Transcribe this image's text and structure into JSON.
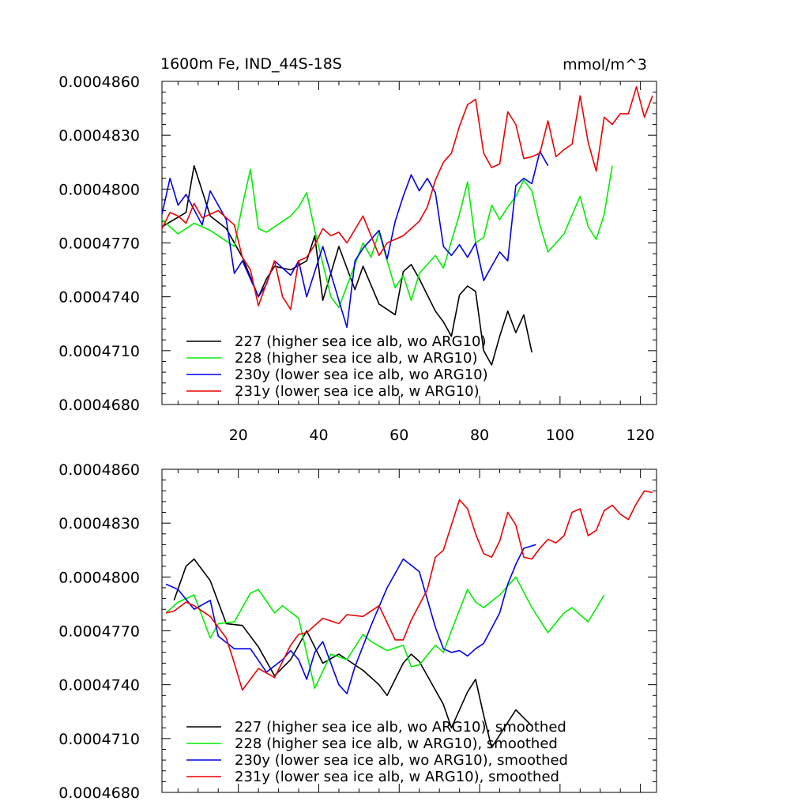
{
  "colors": {
    "227": "#000000",
    "228": "#00ee00",
    "230y": "#0000ee",
    "231y": "#ee0000"
  },
  "chart_data": [
    {
      "type": "line",
      "title_left": "1600m Fe, IND_44S-18S",
      "title_right": "mmol/m^3",
      "xlim": [
        1,
        124
      ],
      "ylim": [
        0.000468,
        0.000486
      ],
      "xticks": [
        20,
        40,
        60,
        80,
        100,
        120
      ],
      "xtick_labels": [
        "20",
        "40",
        "60",
        "80",
        "100",
        "120"
      ],
      "yticks": [
        0.000468,
        0.000471,
        0.000474,
        0.000477,
        0.00048,
        0.000483,
        0.000486
      ],
      "ytick_labels": [
        "0.0004680",
        "0.0004710",
        "0.0004740",
        "0.0004770",
        "0.0004800",
        "0.0004830",
        "0.0004860"
      ],
      "legend": [
        "227 (higher sea ice alb, wo ARG10)",
        "228 (higher sea ice alb, w ARG10)",
        "230y (lower sea ice alb, wo ARG10)",
        "231y (lower sea ice alb, w ARG10)"
      ],
      "series": [
        {
          "name": "227",
          "x": [
            1,
            7,
            9,
            13,
            17,
            21,
            25,
            27,
            29,
            33,
            37,
            39,
            41,
            45,
            49,
            51,
            55,
            59,
            61,
            63,
            65,
            69,
            71,
            73,
            75,
            77,
            79,
            81,
            83,
            85,
            87,
            89,
            91,
            93
          ],
          "y": [
            0.0004779,
            0.0004787,
            0.0004813,
            0.0004785,
            0.0004778,
            0.0004762,
            0.000474,
            0.000475,
            0.0004757,
            0.0004755,
            0.000476,
            0.0004774,
            0.0004738,
            0.0004768,
            0.0004744,
            0.0004757,
            0.0004736,
            0.000473,
            0.0004754,
            0.0004758,
            0.000475,
            0.0004732,
            0.0004726,
            0.0004718,
            0.0004741,
            0.0004746,
            0.0004743,
            0.000471,
            0.0004702,
            0.0004718,
            0.0004732,
            0.000472,
            0.000473,
            0.0004709
          ]
        },
        {
          "name": "228",
          "x": [
            1,
            5,
            9,
            13,
            17,
            19,
            21,
            23,
            25,
            27,
            31,
            33,
            35,
            37,
            39,
            43,
            45,
            49,
            51,
            53,
            55,
            57,
            59,
            61,
            63,
            65,
            69,
            71,
            75,
            77,
            79,
            81,
            83,
            85,
            87,
            89,
            91,
            93,
            95,
            97,
            101,
            105,
            107,
            109,
            111,
            113
          ],
          "y": [
            0.0004783,
            0.0004775,
            0.0004781,
            0.0004777,
            0.0004771,
            0.0004768,
            0.0004791,
            0.0004811,
            0.0004778,
            0.0004776,
            0.0004782,
            0.0004785,
            0.000479,
            0.0004798,
            0.0004777,
            0.000474,
            0.0004734,
            0.0004758,
            0.000477,
            0.0004762,
            0.0004776,
            0.000476,
            0.0004745,
            0.0004752,
            0.0004738,
            0.0004753,
            0.0004763,
            0.0004756,
            0.0004786,
            0.0004804,
            0.000477,
            0.0004773,
            0.0004791,
            0.0004783,
            0.000479,
            0.0004796,
            0.0004805,
            0.0004799,
            0.000478,
            0.0004765,
            0.0004775,
            0.0004796,
            0.0004779,
            0.0004772,
            0.0004786,
            0.0004813
          ]
        },
        {
          "name": "230y",
          "x": [
            1,
            3,
            5,
            7,
            11,
            13,
            17,
            19,
            21,
            25,
            27,
            29,
            33,
            35,
            37,
            41,
            45,
            47,
            49,
            51,
            55,
            57,
            59,
            61,
            63,
            65,
            67,
            69,
            71,
            73,
            75,
            77,
            79,
            81,
            83,
            85,
            87,
            89,
            91,
            93,
            95,
            97
          ],
          "y": [
            0.0004786,
            0.0004806,
            0.0004791,
            0.0004797,
            0.000478,
            0.0004799,
            0.0004783,
            0.0004753,
            0.000476,
            0.000474,
            0.0004747,
            0.000476,
            0.0004752,
            0.000476,
            0.000474,
            0.0004768,
            0.0004738,
            0.0004723,
            0.000476,
            0.0004767,
            0.0004777,
            0.0004761,
            0.0004782,
            0.0004796,
            0.0004808,
            0.0004799,
            0.0004806,
            0.0004798,
            0.0004768,
            0.0004763,
            0.0004769,
            0.0004762,
            0.000477,
            0.0004749,
            0.0004757,
            0.0004765,
            0.000476,
            0.0004802,
            0.0004806,
            0.0004803,
            0.0004821,
            0.0004813
          ]
        },
        {
          "name": "231y",
          "x": [
            1,
            3,
            5,
            7,
            9,
            11,
            15,
            19,
            21,
            23,
            25,
            29,
            31,
            33,
            35,
            37,
            39,
            41,
            43,
            45,
            47,
            51,
            55,
            57,
            61,
            65,
            67,
            69,
            71,
            73,
            75,
            77,
            79,
            81,
            83,
            85,
            87,
            89,
            91,
            93,
            95,
            97,
            99,
            101,
            103,
            105,
            107,
            109,
            111,
            113,
            115,
            117,
            119,
            121,
            123
          ],
          "y": [
            0.0004778,
            0.0004787,
            0.0004785,
            0.0004781,
            0.0004792,
            0.0004784,
            0.0004788,
            0.000478,
            0.0004762,
            0.0004755,
            0.0004735,
            0.000476,
            0.000474,
            0.0004733,
            0.000476,
            0.0004762,
            0.0004769,
            0.0004778,
            0.0004774,
            0.0004776,
            0.000477,
            0.0004785,
            0.0004763,
            0.000477,
            0.0004774,
            0.0004782,
            0.000479,
            0.0004805,
            0.0004815,
            0.000482,
            0.0004835,
            0.0004847,
            0.000485,
            0.000482,
            0.0004812,
            0.0004814,
            0.0004843,
            0.0004836,
            0.0004817,
            0.0004818,
            0.000482,
            0.0004838,
            0.0004818,
            0.0004822,
            0.0004825,
            0.0004852,
            0.0004826,
            0.000481,
            0.000484,
            0.0004836,
            0.0004842,
            0.0004842,
            0.0004857,
            0.000484,
            0.0004852
          ]
        }
      ]
    },
    {
      "type": "line",
      "xlim": [
        1,
        124
      ],
      "ylim": [
        0.000468,
        0.000486
      ],
      "xticks": [
        20,
        40,
        60,
        80,
        100,
        120
      ],
      "yticks": [
        0.000468,
        0.000471,
        0.000474,
        0.000477,
        0.00048,
        0.000483,
        0.000486
      ],
      "ytick_labels": [
        "0.0004680",
        "0.0004710",
        "0.0004740",
        "0.0004770",
        "0.0004800",
        "0.0004830",
        "0.0004860"
      ],
      "legend": [
        "227 (higher sea ice alb, wo ARG10), smoothed",
        "228 (higher sea ice alb, w ARG10), smoothed",
        "230y (lower sea ice alb, wo ARG10), smoothed",
        "231y (lower sea ice alb, w ARG10), smoothed"
      ],
      "series": [
        {
          "name": "227",
          "x": [
            4,
            7,
            9,
            13,
            17,
            21,
            25,
            29,
            33,
            37,
            41,
            45,
            51,
            55,
            57,
            61,
            63,
            65,
            71,
            73,
            77,
            79,
            81,
            83,
            85,
            87,
            89,
            93
          ],
          "y": [
            0.0004787,
            0.0004806,
            0.000481,
            0.0004798,
            0.0004774,
            0.0004773,
            0.0004761,
            0.0004745,
            0.0004754,
            0.000477,
            0.0004752,
            0.0004757,
            0.0004748,
            0.000474,
            0.0004734,
            0.0004752,
            0.0004757,
            0.0004753,
            0.0004729,
            0.0004716,
            0.0004736,
            0.0004743,
            0.0004723,
            0.0004705,
            0.0004712,
            0.0004719,
            0.0004726,
            0.0004717
          ]
        },
        {
          "name": "228",
          "x": [
            2,
            5,
            9,
            13,
            15,
            19,
            23,
            25,
            29,
            31,
            35,
            39,
            43,
            47,
            51,
            53,
            57,
            61,
            63,
            65,
            69,
            71,
            73,
            77,
            79,
            81,
            85,
            89,
            93,
            97,
            101,
            103,
            107,
            111
          ],
          "y": [
            0.000478,
            0.0004786,
            0.000479,
            0.0004766,
            0.0004774,
            0.0004775,
            0.0004791,
            0.0004793,
            0.000478,
            0.0004784,
            0.0004777,
            0.0004738,
            0.0004757,
            0.0004754,
            0.0004768,
            0.0004764,
            0.0004759,
            0.0004762,
            0.000475,
            0.0004751,
            0.0004762,
            0.0004758,
            0.000477,
            0.0004793,
            0.0004786,
            0.0004783,
            0.000479,
            0.00048,
            0.0004783,
            0.0004769,
            0.000478,
            0.0004783,
            0.0004775,
            0.000479
          ]
        },
        {
          "name": "230y",
          "x": [
            2,
            5,
            9,
            13,
            15,
            19,
            23,
            27,
            31,
            33,
            35,
            37,
            39,
            41,
            45,
            47,
            49,
            53,
            57,
            61,
            65,
            69,
            71,
            73,
            75,
            77,
            79,
            81,
            85,
            87,
            89,
            91,
            94
          ],
          "y": [
            0.0004796,
            0.0004793,
            0.0004782,
            0.0004787,
            0.0004767,
            0.000476,
            0.000476,
            0.0004747,
            0.0004754,
            0.0004759,
            0.0004754,
            0.0004743,
            0.0004758,
            0.0004764,
            0.000474,
            0.0004735,
            0.000475,
            0.0004773,
            0.0004794,
            0.000481,
            0.0004803,
            0.0004772,
            0.000476,
            0.0004758,
            0.0004759,
            0.0004756,
            0.000476,
            0.0004763,
            0.000478,
            0.0004796,
            0.0004807,
            0.0004816,
            0.0004818
          ]
        },
        {
          "name": "231y",
          "x": [
            2,
            4,
            7,
            9,
            13,
            17,
            19,
            21,
            25,
            29,
            33,
            35,
            37,
            41,
            45,
            47,
            51,
            55,
            59,
            61,
            63,
            67,
            69,
            71,
            75,
            77,
            79,
            81,
            83,
            85,
            87,
            89,
            91,
            93,
            95,
            97,
            99,
            101,
            103,
            105,
            107,
            109,
            111,
            113,
            115,
            117,
            119,
            121,
            123
          ],
          "y": [
            0.000478,
            0.0004781,
            0.0004786,
            0.0004784,
            0.0004778,
            0.0004766,
            0.0004752,
            0.0004737,
            0.0004749,
            0.0004744,
            0.0004762,
            0.0004768,
            0.0004769,
            0.0004777,
            0.0004774,
            0.0004779,
            0.0004778,
            0.0004784,
            0.0004765,
            0.0004765,
            0.0004776,
            0.0004793,
            0.0004811,
            0.0004815,
            0.0004843,
            0.0004838,
            0.0004824,
            0.0004813,
            0.0004811,
            0.000482,
            0.0004836,
            0.0004829,
            0.0004811,
            0.000481,
            0.0004816,
            0.0004821,
            0.0004819,
            0.0004823,
            0.0004836,
            0.0004838,
            0.0004823,
            0.0004826,
            0.0004837,
            0.000484,
            0.0004835,
            0.0004832,
            0.0004841,
            0.0004848,
            0.0004847
          ]
        }
      ]
    }
  ]
}
